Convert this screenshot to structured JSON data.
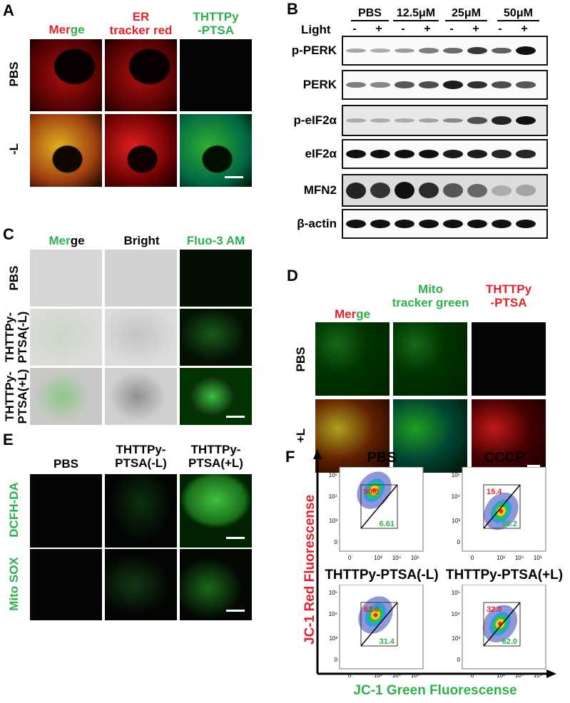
{
  "panels": {
    "A": "A",
    "B": "B",
    "C": "C",
    "D": "D",
    "E": "E",
    "F": "F"
  },
  "panelA": {
    "cols": [
      {
        "pre": "Mer",
        "post": "ge"
      },
      {
        "l1": "ER",
        "l2": "tracker red"
      },
      {
        "l1": "THTTPy",
        "l2": "-PTSA"
      }
    ],
    "rows": [
      "PBS",
      "-L"
    ]
  },
  "panelB": {
    "groups": [
      "PBS",
      "12.5μM",
      "25μM",
      "50μM"
    ],
    "light_label": "Light",
    "light": [
      "-",
      "+",
      "-",
      "+",
      "-",
      "+",
      "-",
      "+"
    ],
    "blots": [
      {
        "label": "p-PERK",
        "intensity": [
          0.25,
          0.2,
          0.3,
          0.45,
          0.55,
          0.8,
          0.6,
          1.0
        ]
      },
      {
        "label": "PERK",
        "intensity": [
          0.45,
          0.4,
          0.65,
          0.7,
          0.95,
          0.85,
          0.7,
          0.65
        ]
      },
      {
        "label": "p-eIF2α",
        "intensity": [
          0.15,
          0.15,
          0.15,
          0.2,
          0.35,
          0.65,
          0.9,
          1.0
        ]
      },
      {
        "label": "eIF2α",
        "intensity": [
          1,
          1,
          1,
          1,
          0.95,
          0.95,
          0.9,
          0.9
        ]
      },
      {
        "label": "MFN2",
        "intensity": [
          0.9,
          0.8,
          1.0,
          0.85,
          0.6,
          0.5,
          0.1,
          0.15
        ]
      },
      {
        "label": "β-actin",
        "intensity": [
          1,
          1,
          1,
          1,
          1,
          1,
          1,
          1
        ]
      }
    ]
  },
  "panelC": {
    "cols": [
      {
        "pre": "Mer",
        "post": "ge"
      },
      "Bright",
      "Fluo-3 AM"
    ],
    "rows": [
      "PBS",
      "THTTPy-\nPTSA(-L)",
      "THTTPy-\nPTSA(+L)"
    ]
  },
  "panelD": {
    "cols": [
      {
        "pre": "Mer",
        "post": "ge"
      },
      {
        "l1": "Mito",
        "l2": "tracker green"
      },
      {
        "l1": "THTTPy",
        "l2": "-PTSA"
      }
    ],
    "rows": [
      "PBS",
      "+L"
    ]
  },
  "panelE": {
    "cols": [
      "PBS",
      {
        "l1": "THTTPy-",
        "l2": "PTSA(-L)"
      },
      {
        "l1": "THTTPy-",
        "l2": "PTSA(+L)"
      }
    ],
    "rows": [
      "DCFH-DA",
      "Mito SOX"
    ]
  },
  "panelF": {
    "ylabel": "JC-1 Red Fluorescense",
    "xlabel": "JC-1 Green Fluorescense",
    "ticks_x": [
      "0",
      "10³",
      "10⁴",
      "10⁵"
    ],
    "ticks_y": [
      "10⁵",
      "10⁴",
      "10³",
      "0"
    ],
    "plots": [
      {
        "title": "PBS",
        "red": "90.3",
        "green": "6.61"
      },
      {
        "title": "CCCP",
        "red": "15.4",
        "green": "80.2"
      },
      {
        "title": "THTTPy-PTSA(-L)",
        "red": "62.0",
        "green": "31.4"
      },
      {
        "title": "THTTPy-PTSA(+L)",
        "red": "32.0",
        "green": "62.0"
      }
    ]
  },
  "colors": {
    "red": "#e8202a",
    "green": "#2bb24c"
  }
}
